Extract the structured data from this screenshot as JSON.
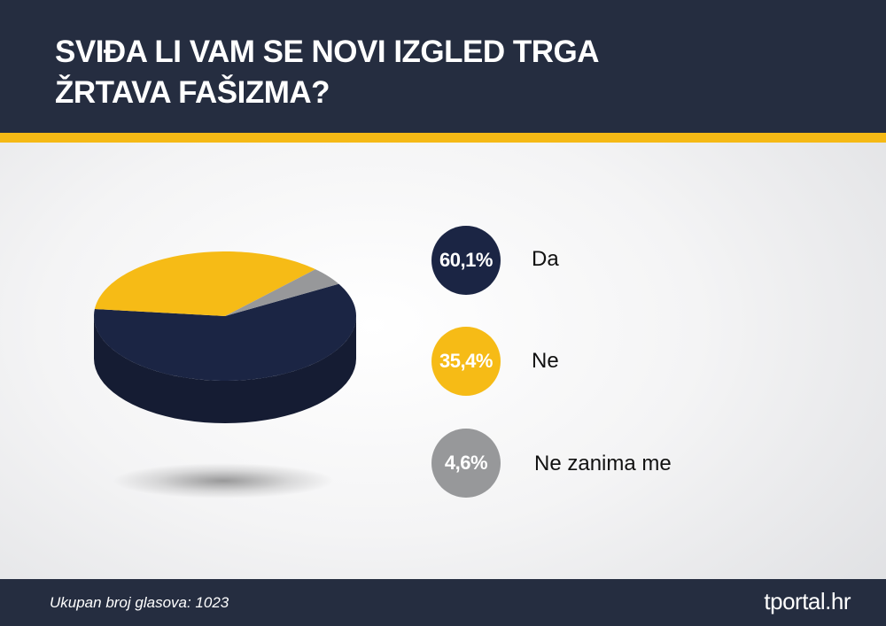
{
  "header": {
    "title_lines": [
      "SVIĐA LI VAM SE NOVI IZGLED TRGA",
      "ŽRTAVA FAŠIZMA?"
    ]
  },
  "chart_data": {
    "type": "pie",
    "title": "SVIĐA LI VAM SE NOVI IZGLED TRGA ŽRTAVA FAŠIZMA?",
    "slices": [
      {
        "label": "Da",
        "value": 60.1,
        "display": "60,1%",
        "color": "#1b2544",
        "side_color": "#151c33"
      },
      {
        "label": "Ne",
        "value": 35.4,
        "display": "35,4%",
        "color": "#f6bb16",
        "side_color": "#d3a236"
      },
      {
        "label": "Ne zanima me",
        "value": 4.6,
        "display": "4,6%",
        "color": "#97989a",
        "side_color": "#85868a"
      }
    ]
  },
  "footer": {
    "note": "Ukupan broj glasova: 1023",
    "logo": "tportal.hr"
  }
}
